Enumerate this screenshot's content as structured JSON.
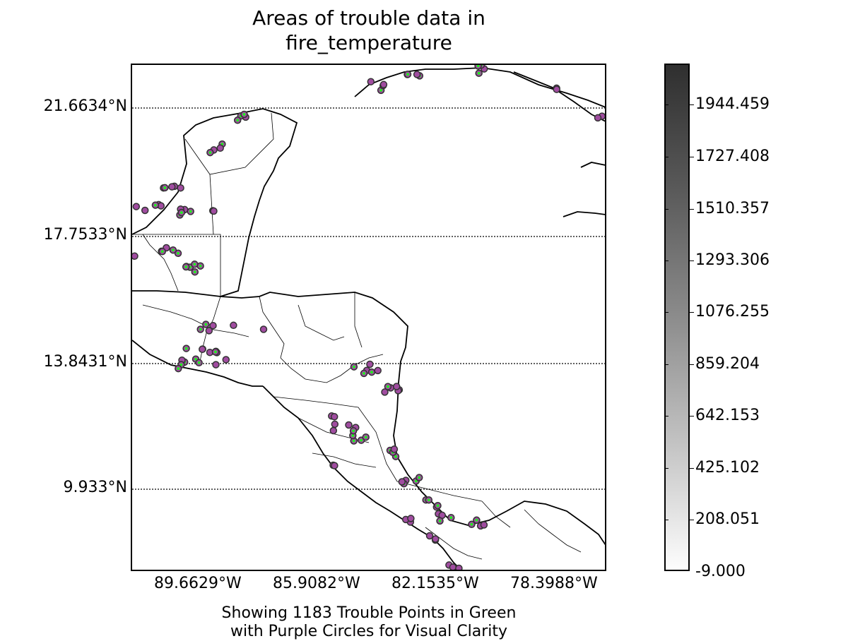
{
  "title": {
    "line1": "Areas of trouble data in",
    "line2": "fire_temperature"
  },
  "lat_labels": [
    "21.6634°N",
    "17.7533°N",
    "13.8431°N",
    "9.933°N"
  ],
  "lon_labels": [
    "89.6629°W",
    "85.9082°W",
    "82.1535°W",
    "78.3988°W"
  ],
  "xlabel": {
    "line1": "Showing 1183 Trouble Points in Green",
    "line2": "with Purple Circles for Visual Clarity"
  },
  "colorbar": {
    "labels": [
      "1944.459",
      "1727.408",
      "1510.357",
      "1293.306",
      "1076.255",
      "859.204",
      "642.153",
      "425.102",
      "208.051",
      "-9.000"
    ],
    "min": -9.0,
    "max": 2100
  },
  "colors": {
    "trouble_point": "#22ee22",
    "circle_fill": "#a04ca0",
    "circle_edge": "#333333"
  }
}
